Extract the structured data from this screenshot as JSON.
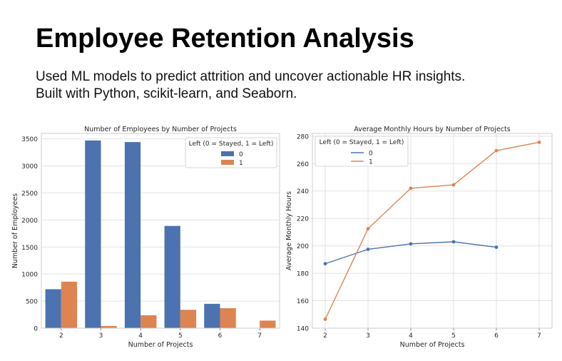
{
  "page": {
    "title": "Employee Retention Analysis",
    "subtitle_line1": "Used ML models to predict attrition and uncover actionable HR insights.",
    "subtitle_line2": "Built with Python, scikit-learn, and Seaborn."
  },
  "colors": {
    "series_0": "#4c72b0",
    "series_1": "#dd8452",
    "grid": "#e3e3e3",
    "axes_edge": "#cfcfcf"
  },
  "chart_data": [
    {
      "type": "bar",
      "title": "Number of Employees by Number of Projects",
      "xlabel": "Number of Projects",
      "ylabel": "Number of Employees",
      "categories": [
        "2",
        "3",
        "4",
        "5",
        "6",
        "7"
      ],
      "yticks": [
        0,
        500,
        1000,
        1500,
        2000,
        2500,
        3000,
        3500
      ],
      "ylim": [
        0,
        3600
      ],
      "grid": true,
      "legend": {
        "title": "Left (0 = Stayed, 1 = Left)",
        "placement": "top-right"
      },
      "series": [
        {
          "name": "0",
          "values": [
            720,
            3470,
            3440,
            1890,
            450,
            0
          ]
        },
        {
          "name": "1",
          "values": [
            860,
            40,
            240,
            340,
            370,
            140
          ]
        }
      ]
    },
    {
      "type": "line",
      "title": "Average Monthly Hours by Number of Projects",
      "xlabel": "Number of Projects",
      "ylabel": "Average Monthly Hours",
      "x": [
        2,
        3,
        4,
        5,
        6,
        7
      ],
      "xlim": [
        1.7,
        7.3
      ],
      "yticks": [
        140,
        160,
        180,
        200,
        220,
        240,
        260,
        280
      ],
      "ylim": [
        140,
        282
      ],
      "grid": true,
      "legend": {
        "title": "Left (0 = Stayed, 1 = Left)",
        "placement": "top-left"
      },
      "series": [
        {
          "name": "0",
          "values": [
            187,
            197.5,
            201.5,
            203,
            199,
            null
          ]
        },
        {
          "name": "1",
          "values": [
            146.5,
            212.5,
            242,
            244.5,
            269.5,
            275.5
          ]
        }
      ]
    }
  ]
}
